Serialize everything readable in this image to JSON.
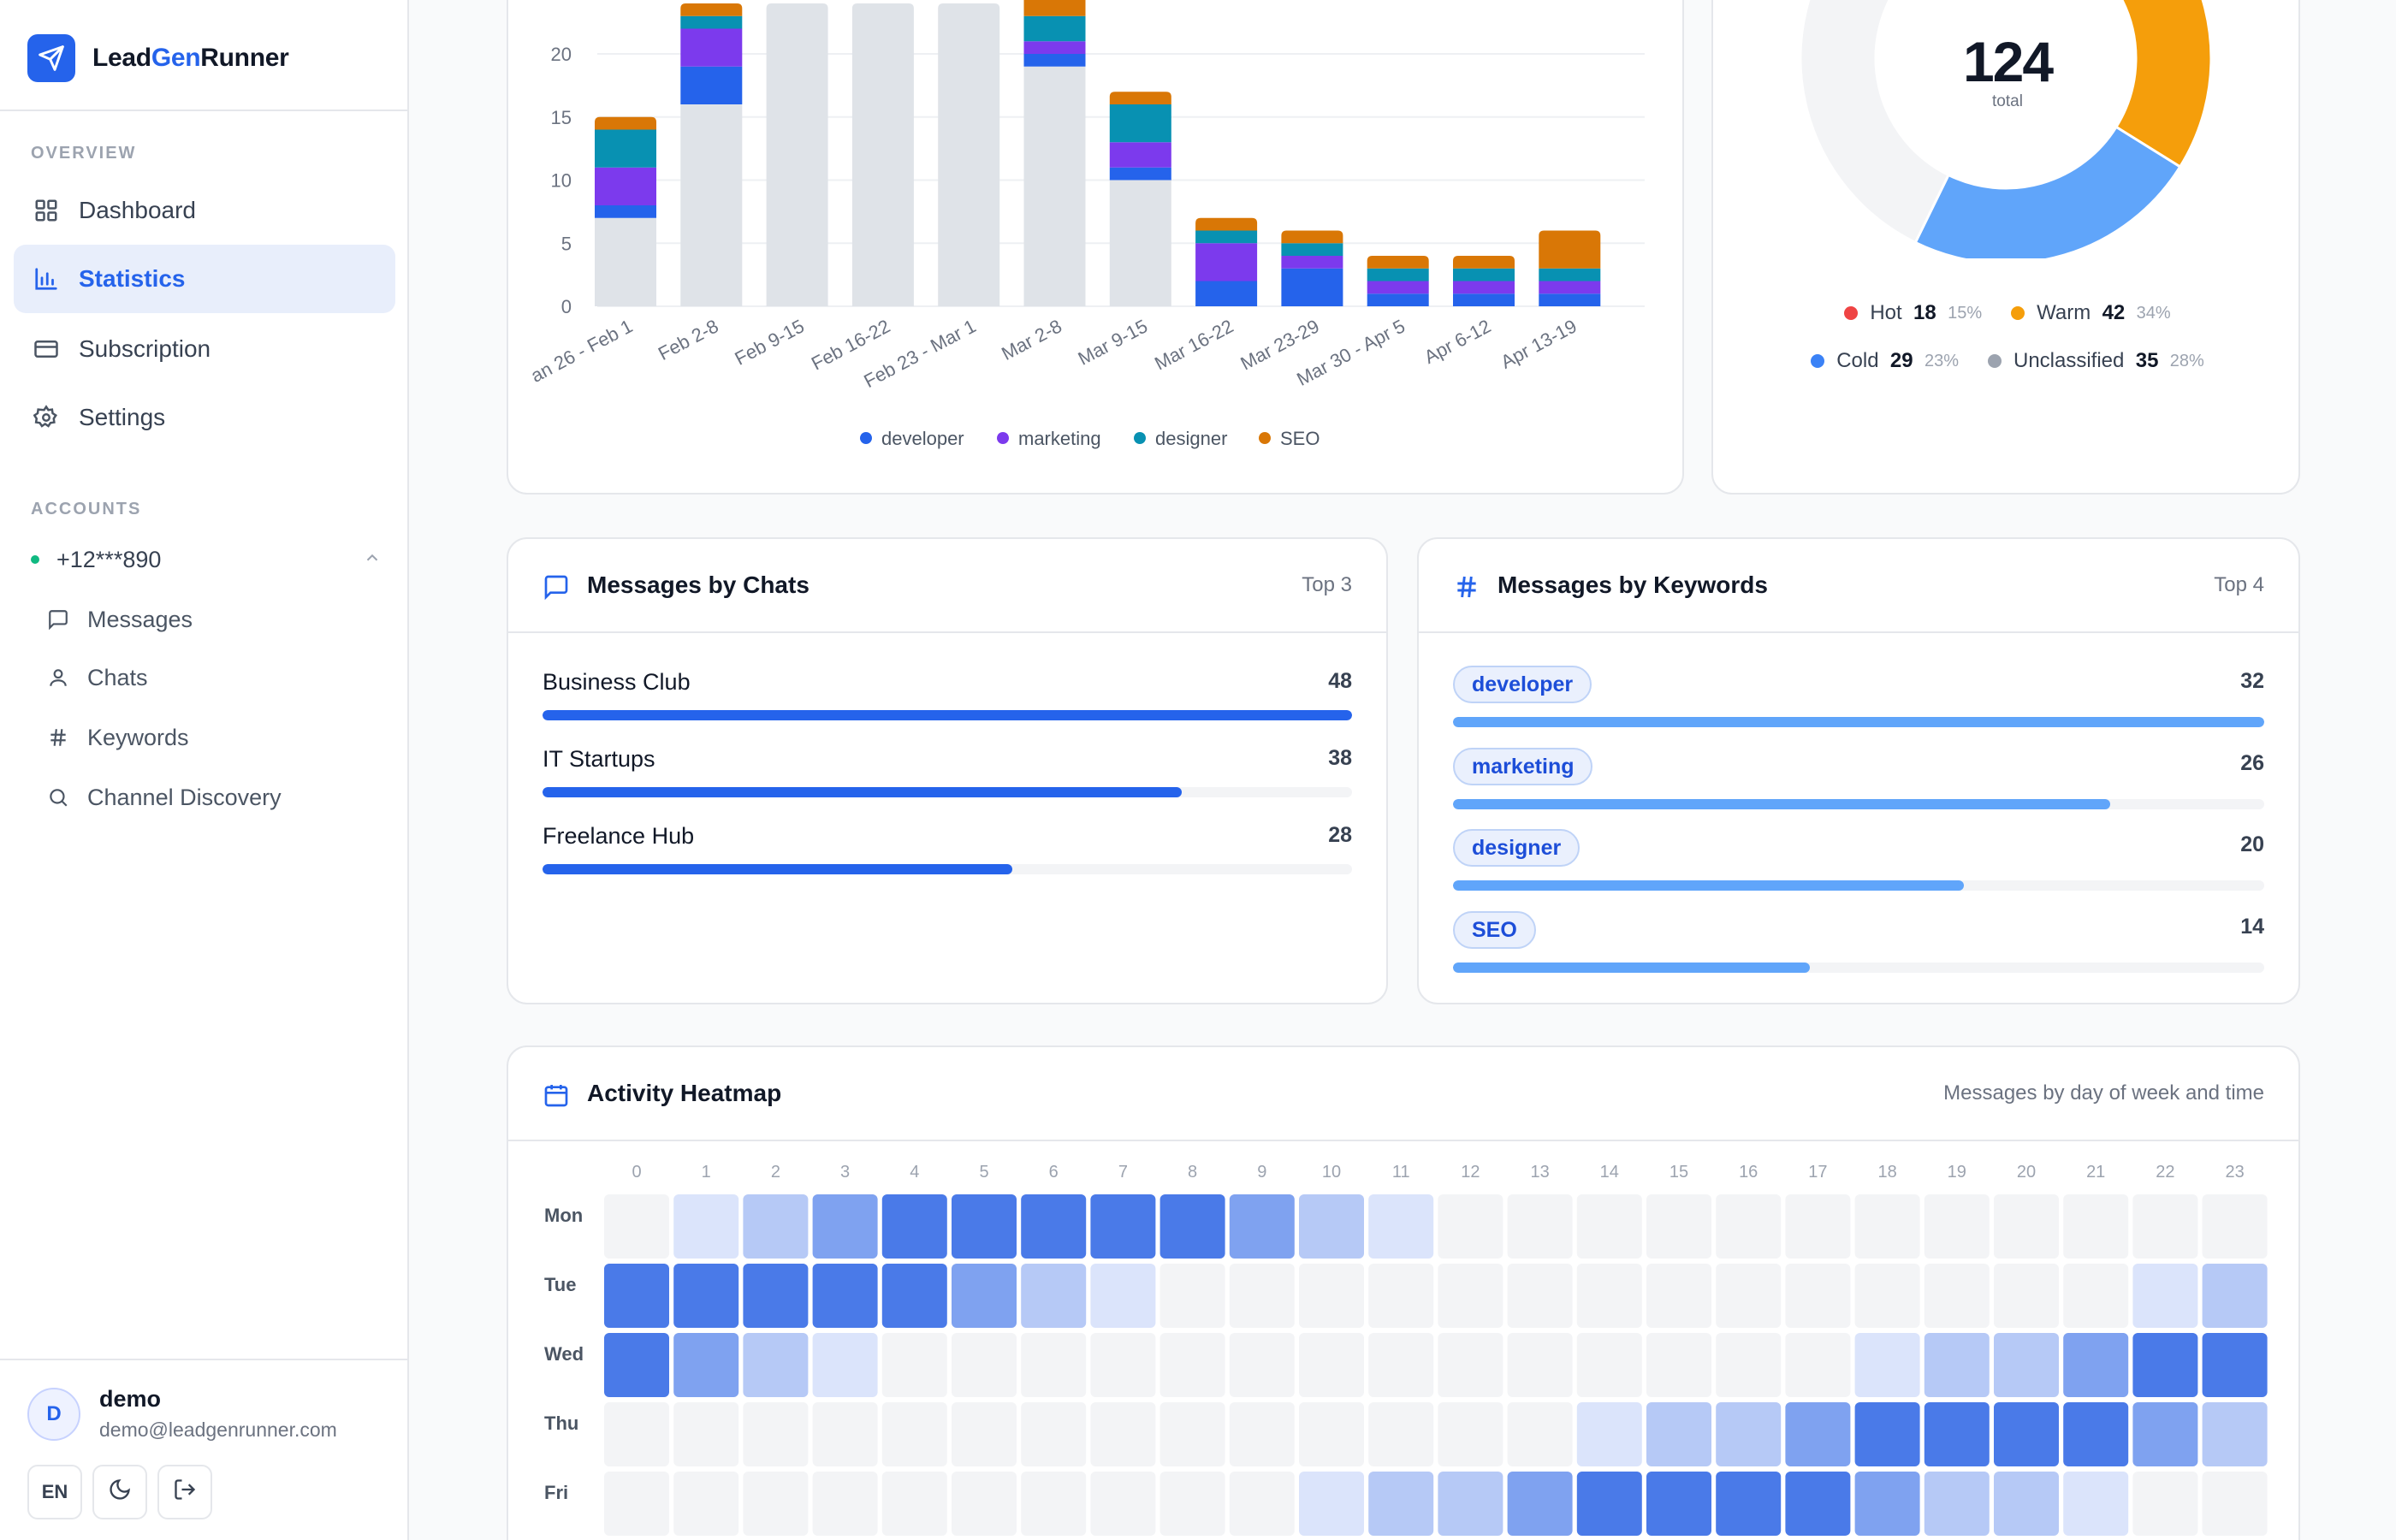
{
  "app": {
    "name_part1": "Lead",
    "name_part2": "Gen",
    "name_part3": "Runner"
  },
  "sidebar": {
    "overview_label": "OVERVIEW",
    "nav": [
      {
        "label": "Dashboard",
        "icon": "grid-icon"
      },
      {
        "label": "Statistics",
        "icon": "bar-chart-icon",
        "active": true
      },
      {
        "label": "Subscription",
        "icon": "credit-card-icon"
      },
      {
        "label": "Settings",
        "icon": "gear-icon"
      }
    ],
    "accounts_label": "ACCOUNTS",
    "account": {
      "phone": "+12***890",
      "status": "online"
    },
    "account_items": [
      {
        "label": "Messages",
        "icon": "message-icon"
      },
      {
        "label": "Chats",
        "icon": "user-icon"
      },
      {
        "label": "Keywords",
        "icon": "hash-icon"
      },
      {
        "label": "Channel Discovery",
        "icon": "search-icon"
      }
    ],
    "user": {
      "initial": "D",
      "name": "demo",
      "email": "demo@leadgenrunner.com"
    },
    "tools": {
      "lang": "EN"
    }
  },
  "weekly_chart": {
    "y_ticks": [
      "0",
      "5",
      "10",
      "15",
      "20"
    ],
    "legend": [
      {
        "label": "developer",
        "color": "#2563eb"
      },
      {
        "label": "marketing",
        "color": "#7c3aed"
      },
      {
        "label": "designer",
        "color": "#0891b2"
      },
      {
        "label": "SEO",
        "color": "#d97706"
      }
    ]
  },
  "chart_data": [
    {
      "type": "bar",
      "stacked": true,
      "categories": [
        "an 26 - Feb 1",
        "Feb 2-8",
        "Feb 9-15",
        "Feb 16-22",
        "Feb 23 - Mar 1",
        "Mar 2-8",
        "Mar 9-15",
        "Mar 16-22",
        "Mar 23-29",
        "Mar 30 - Apr 5",
        "Apr 6-12",
        "Apr 13-19"
      ],
      "ylim": [
        0,
        24
      ],
      "grid": true,
      "legend_position": "bottom",
      "series": [
        {
          "name": "base",
          "color": "#dfe3e8",
          "values": [
            7,
            16,
            24,
            24,
            24,
            19,
            10,
            0,
            0,
            0,
            0,
            0
          ]
        },
        {
          "name": "developer",
          "color": "#2563eb",
          "values": [
            1,
            3,
            0,
            0,
            0,
            1,
            1,
            2,
            3,
            1,
            1,
            1
          ]
        },
        {
          "name": "marketing",
          "color": "#7c3aed",
          "values": [
            3,
            3,
            0,
            0,
            0,
            1,
            2,
            3,
            1,
            1,
            1,
            1
          ]
        },
        {
          "name": "designer",
          "color": "#0891b2",
          "values": [
            3,
            1,
            0,
            0,
            0,
            2,
            3,
            1,
            1,
            1,
            1,
            1
          ]
        },
        {
          "name": "SEO",
          "color": "#d97706",
          "values": [
            1,
            1,
            0,
            0,
            0,
            2,
            1,
            1,
            1,
            1,
            1,
            3
          ]
        }
      ]
    },
    {
      "type": "pie",
      "donut": true,
      "center_value": "124",
      "center_label": "total",
      "slices": [
        {
          "label": "Hot",
          "value": 18,
          "pct": "15%",
          "color": "#ef4444"
        },
        {
          "label": "Warm",
          "value": 42,
          "pct": "34%",
          "color": "#f59e0b"
        },
        {
          "label": "Cold",
          "value": 29,
          "pct": "23%",
          "color": "#60a5fa"
        },
        {
          "label": "Unclassified",
          "value": 35,
          "pct": "28%",
          "color": "#f3f4f6"
        }
      ]
    },
    {
      "type": "heatmap",
      "title": "Activity Heatmap",
      "x": [
        "0",
        "1",
        "2",
        "3",
        "4",
        "5",
        "6",
        "7",
        "8",
        "9",
        "10",
        "11",
        "12",
        "13",
        "14",
        "15",
        "16",
        "17",
        "18",
        "19",
        "20",
        "21",
        "22",
        "23"
      ],
      "y": [
        "Mon",
        "Tue",
        "Wed",
        "Thu",
        "Fri"
      ],
      "values": [
        [
          0,
          1,
          2,
          3,
          4,
          4,
          4,
          4,
          4,
          3,
          2,
          1,
          0,
          0,
          0,
          0,
          0,
          0,
          0,
          0,
          0,
          0,
          0,
          0
        ],
        [
          4,
          4,
          4,
          4,
          4,
          3,
          2,
          1,
          0,
          0,
          0,
          0,
          0,
          0,
          0,
          0,
          0,
          0,
          0,
          0,
          0,
          0,
          1,
          2
        ],
        [
          4,
          3,
          2,
          1,
          0,
          0,
          0,
          0,
          0,
          0,
          0,
          0,
          0,
          0,
          0,
          0,
          0,
          0,
          1,
          2,
          2,
          3,
          4,
          4
        ],
        [
          0,
          0,
          0,
          0,
          0,
          0,
          0,
          0,
          0,
          0,
          0,
          0,
          0,
          0,
          1,
          2,
          2,
          3,
          4,
          4,
          4,
          4,
          3,
          2
        ],
        [
          0,
          0,
          0,
          0,
          0,
          0,
          0,
          0,
          0,
          0,
          1,
          2,
          2,
          3,
          4,
          4,
          4,
          4,
          3,
          2,
          2,
          1,
          0,
          0
        ]
      ],
      "scale_colors": [
        "#f3f4f6",
        "#dbe4fb",
        "#b6c9f6",
        "#7fa2f0",
        "#4a7ae8"
      ]
    }
  ],
  "donut_legend": [
    {
      "label": "Hot",
      "value": "18",
      "pct": "15%",
      "color": "#ef4444"
    },
    {
      "label": "Warm",
      "value": "42",
      "pct": "34%",
      "color": "#f59e0b"
    },
    {
      "label": "Cold",
      "value": "29",
      "pct": "23%",
      "color": "#3b82f6"
    },
    {
      "label": "Unclassified",
      "value": "35",
      "pct": "28%",
      "color": "#9ca3af"
    }
  ],
  "chats_card": {
    "title": "Messages by Chats",
    "meta": "Top 3",
    "rows": [
      {
        "label": "Business Club",
        "count": "48",
        "fraction": 1.0
      },
      {
        "label": "IT Startups",
        "count": "38",
        "fraction": 0.79
      },
      {
        "label": "Freelance Hub",
        "count": "28",
        "fraction": 0.58
      }
    ]
  },
  "keywords_card": {
    "title": "Messages by Keywords",
    "meta": "Top 4",
    "rows": [
      {
        "label": "developer",
        "count": "32",
        "fraction": 1.0
      },
      {
        "label": "marketing",
        "count": "26",
        "fraction": 0.81
      },
      {
        "label": "designer",
        "count": "20",
        "fraction": 0.63
      },
      {
        "label": "SEO",
        "count": "14",
        "fraction": 0.44
      }
    ]
  },
  "heatmap_card": {
    "title": "Activity Heatmap",
    "meta": "Messages by day of week and time"
  }
}
